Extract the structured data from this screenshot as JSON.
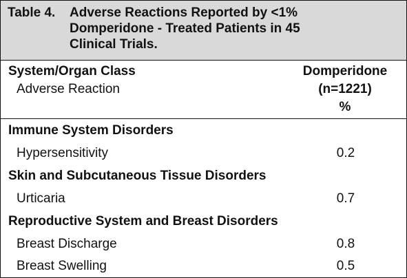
{
  "table": {
    "label": "Table 4.",
    "title": "Adverse Reactions Reported by <1%\nDomperidone - Treated Patients in 45\nClinical Trials.",
    "header": {
      "left_line1": "System/Organ Class",
      "left_line2": "Adverse Reaction",
      "right_line1": "Domperidone",
      "right_line2": "(n=1221)",
      "right_line3": "%"
    },
    "rows": [
      {
        "type": "group",
        "label": "Immune System Disorders"
      },
      {
        "type": "item",
        "label": "Hypersensitivity",
        "value": "0.2"
      },
      {
        "type": "group",
        "label": "Skin and Subcutaneous Tissue Disorders"
      },
      {
        "type": "item",
        "label": "Urticaria",
        "value": "0.7"
      },
      {
        "type": "group",
        "label": "Reproductive System and Breast Disorders"
      },
      {
        "type": "item",
        "label": "Breast Discharge",
        "value": "0.8"
      },
      {
        "type": "item",
        "label": "Breast Swelling",
        "value": "0.5"
      }
    ]
  }
}
